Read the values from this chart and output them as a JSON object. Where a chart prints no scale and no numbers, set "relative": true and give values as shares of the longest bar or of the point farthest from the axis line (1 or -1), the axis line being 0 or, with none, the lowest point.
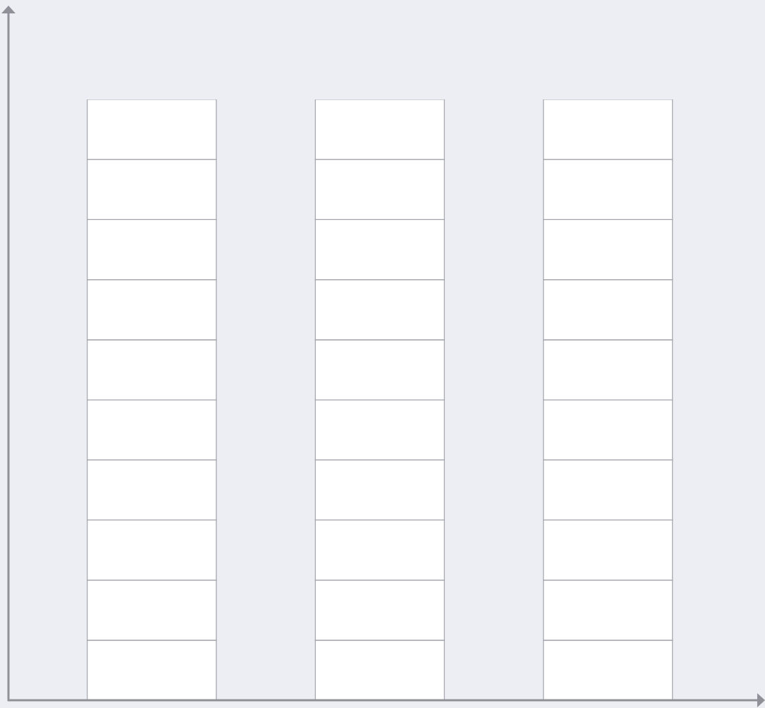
{
  "chart_data": {
    "type": "bar",
    "relative": true,
    "stacked": true,
    "categories": [
      null,
      null,
      null
    ],
    "series": [
      {
        "color": "#ffffff",
        "values": [
          0.1,
          0.1,
          0.1
        ]
      },
      {
        "color": "#ffffff",
        "values": [
          0.1,
          0.1,
          0.1
        ]
      },
      {
        "color": "#ffffff",
        "values": [
          0.1,
          0.1,
          0.1
        ]
      },
      {
        "color": "#ffffff",
        "values": [
          0.1,
          0.1,
          0.1
        ]
      },
      {
        "color": "#ffffff",
        "values": [
          0.1,
          0.1,
          0.1
        ]
      },
      {
        "color": "#ffffff",
        "values": [
          0.1,
          0.1,
          0.1
        ]
      },
      {
        "color": "#ffffff",
        "values": [
          0.1,
          0.1,
          0.1
        ]
      },
      {
        "color": "#ffffff",
        "values": [
          0.1,
          0.1,
          0.1
        ]
      },
      {
        "color": "#ffffff",
        "values": [
          0.1,
          0.1,
          0.1
        ]
      },
      {
        "color": "#ffffff",
        "values": [
          0.1,
          0.1,
          0.1
        ]
      }
    ]
  }
}
